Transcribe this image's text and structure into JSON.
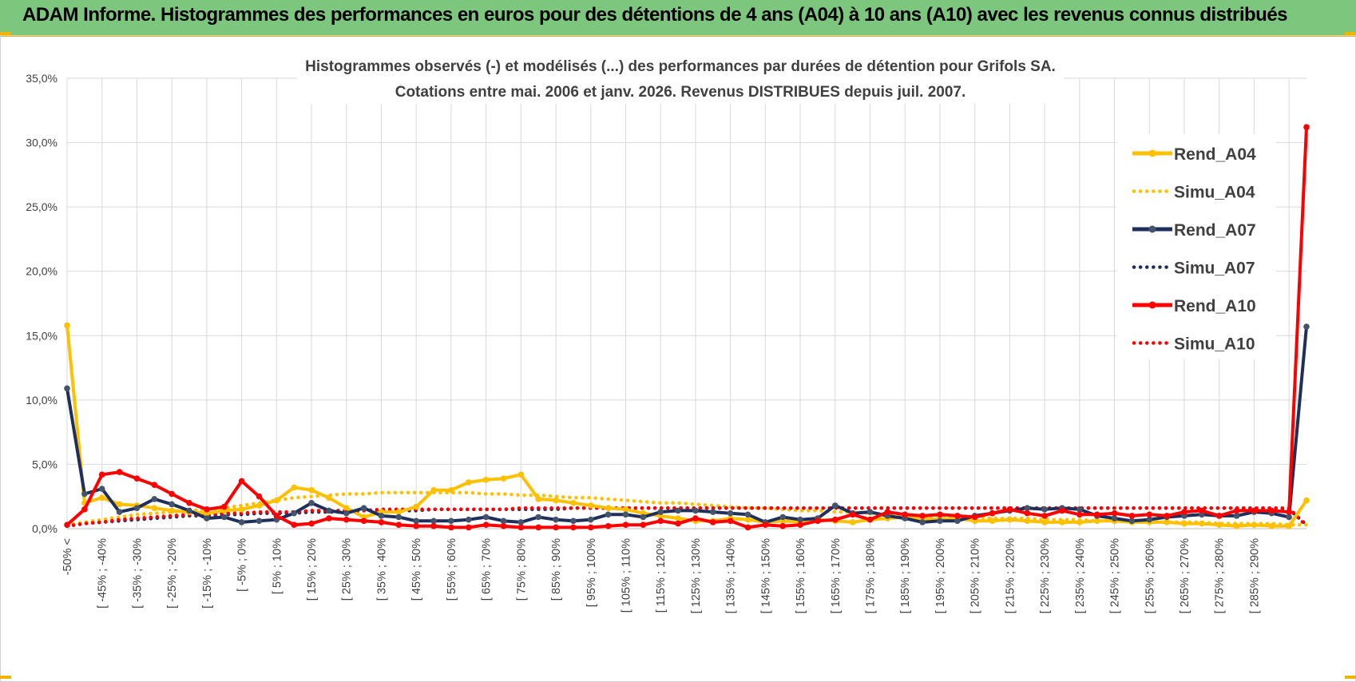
{
  "banner": {
    "title": "ADAM Informe. Histogrammes des performances en euros pour des détentions de 4 ans (A04) à 10 ans (A10) avec les revenus connus distribués"
  },
  "colors": {
    "banner_bg": "#7cc67e",
    "A04": "#ffc000",
    "A07": "#1f2f5c",
    "A10": "#ff0000",
    "grid": "#d9d9d9"
  },
  "chart_data": {
    "type": "line",
    "title": "Histogrammes observés (-) et modélisés (...) des performances par durées de détention pour Grifols SA.",
    "subtitle": "Cotations entre mai. 2006 et janv. 2026. Revenus DISTRIBUES depuis juil. 2007.",
    "xlabel": "",
    "ylabel": "",
    "ylim": [
      0,
      35
    ],
    "yticks": [
      "0,0%",
      "5,0%",
      "10,0%",
      "15,0%",
      "20,0%",
      "25,0%",
      "30,0%",
      "35,0%"
    ],
    "grid": true,
    "legend_position": "right",
    "x_tick_labels": [
      "-50% <",
      "[ -45% ; -40%",
      "[ -35% ; -30%",
      "[ -25% ; -20%",
      "[ -15% ; -10%",
      "[ -5% ; 0%",
      "[ 5% ; 10%",
      "[ 15% ; 20%",
      "[ 25% ; 30%",
      "[ 35% ; 40%",
      "[ 45% ; 50%",
      "[ 55% ; 60%",
      "[ 65% ; 70%",
      "[ 75% ; 80%",
      "[ 85% ; 90%",
      "[ 95% ; 100%",
      "[ 105% ; 110%",
      "[ 115% ; 120%",
      "[ 125% ; 130%",
      "[ 135% ; 140%",
      "[ 145% ; 150%",
      "[ 155% ; 160%",
      "[ 165% ; 170%",
      "[ 175% ; 180%",
      "[ 185% ; 190%",
      "[ 195% ; 200%",
      "[ 205% ; 210%",
      "[ 215% ; 220%",
      "[ 225% ; 230%",
      "[ 235% ; 240%",
      "[ 245% ; 250%",
      "[ 255% ; 260%",
      "[ 265% ; 270%",
      "[ 275% ; 280%",
      "[ 285% ; 290%"
    ],
    "n_points": 72,
    "series": [
      {
        "name": "Rend_A04",
        "style": "solid",
        "color": "#ffc000",
        "values": [
          15.8,
          2.0,
          2.4,
          1.9,
          1.8,
          1.6,
          1.4,
          1.3,
          1.2,
          1.4,
          1.5,
          1.8,
          2.2,
          3.2,
          3.0,
          2.4,
          1.6,
          0.9,
          1.3,
          1.3,
          1.7,
          3.0,
          3.0,
          3.6,
          3.8,
          3.9,
          4.2,
          2.3,
          2.2,
          2.0,
          1.8,
          1.6,
          1.5,
          1.2,
          1.0,
          0.8,
          0.6,
          0.6,
          0.8,
          0.7,
          0.5,
          0.6,
          0.5,
          0.7,
          0.6,
          0.5,
          0.7,
          0.8,
          0.9,
          0.8,
          0.7,
          0.8,
          0.6,
          0.6,
          0.7,
          0.6,
          0.5,
          0.5,
          0.5,
          0.6,
          0.6,
          0.5,
          0.5,
          0.5,
          0.4,
          0.4,
          0.3,
          0.2,
          0.3,
          0.2,
          0.2,
          2.2
        ]
      },
      {
        "name": "Simu_A04",
        "style": "dotted",
        "color": "#ffc000",
        "values": [
          0.3,
          0.5,
          0.7,
          0.9,
          1.1,
          1.2,
          1.3,
          1.4,
          1.5,
          1.6,
          1.8,
          2.0,
          2.2,
          2.4,
          2.5,
          2.6,
          2.7,
          2.7,
          2.8,
          2.8,
          2.8,
          2.8,
          2.8,
          2.8,
          2.7,
          2.7,
          2.6,
          2.6,
          2.5,
          2.4,
          2.4,
          2.3,
          2.2,
          2.1,
          2.0,
          2.0,
          1.9,
          1.8,
          1.7,
          1.6,
          1.6,
          1.5,
          1.4,
          1.4,
          1.3,
          1.3,
          1.2,
          1.1,
          1.1,
          1.0,
          1.0,
          0.9,
          0.9,
          0.8,
          0.8,
          0.8,
          0.7,
          0.7,
          0.7,
          0.6,
          0.6,
          0.6,
          0.5,
          0.5,
          0.5,
          0.5,
          0.4,
          0.4,
          0.4,
          0.4,
          0.3,
          0.3
        ]
      },
      {
        "name": "Rend_A07",
        "style": "solid",
        "color": "#1f2f5c",
        "values": [
          10.9,
          2.7,
          3.1,
          1.3,
          1.6,
          2.3,
          1.9,
          1.4,
          0.8,
          0.9,
          0.5,
          0.6,
          0.7,
          1.2,
          2.0,
          1.4,
          1.2,
          1.6,
          1.0,
          0.9,
          0.6,
          0.6,
          0.6,
          0.7,
          0.9,
          0.6,
          0.5,
          0.9,
          0.7,
          0.6,
          0.7,
          1.1,
          1.1,
          0.9,
          1.3,
          1.4,
          1.4,
          1.3,
          1.2,
          1.1,
          0.5,
          0.9,
          0.7,
          0.8,
          1.8,
          1.2,
          1.3,
          1.0,
          0.8,
          0.5,
          0.6,
          0.6,
          1.0,
          1.2,
          1.4,
          1.6,
          1.5,
          1.6,
          1.5,
          1.0,
          0.8,
          0.6,
          0.7,
          0.9,
          1.0,
          1.1,
          1.0,
          1.0,
          1.3,
          1.2,
          0.9,
          15.7
        ]
      },
      {
        "name": "Simu_A07",
        "style": "dotted",
        "color": "#1f2f5c",
        "values": [
          0.2,
          0.4,
          0.5,
          0.6,
          0.7,
          0.8,
          0.9,
          1.0,
          1.0,
          1.1,
          1.1,
          1.2,
          1.2,
          1.2,
          1.3,
          1.3,
          1.3,
          1.4,
          1.4,
          1.4,
          1.4,
          1.5,
          1.5,
          1.5,
          1.5,
          1.5,
          1.5,
          1.5,
          1.5,
          1.6,
          1.6,
          1.6,
          1.6,
          1.6,
          1.6,
          1.6,
          1.6,
          1.6,
          1.6,
          1.6,
          1.6,
          1.6,
          1.6,
          1.6,
          1.6,
          1.6,
          1.6,
          1.6,
          1.6,
          1.6,
          1.6,
          1.6,
          1.6,
          1.6,
          1.6,
          1.6,
          1.6,
          1.6,
          1.6,
          1.6,
          1.6,
          1.6,
          1.6,
          1.6,
          1.6,
          1.6,
          1.6,
          1.6,
          1.6,
          1.6,
          1.5,
          0.3
        ]
      },
      {
        "name": "Rend_A10",
        "style": "solid",
        "color": "#ff0000",
        "values": [
          0.3,
          1.5,
          4.2,
          4.4,
          3.9,
          3.4,
          2.7,
          2.0,
          1.5,
          1.7,
          3.7,
          2.5,
          1.0,
          0.3,
          0.4,
          0.8,
          0.7,
          0.6,
          0.5,
          0.3,
          0.2,
          0.2,
          0.1,
          0.1,
          0.3,
          0.2,
          0.1,
          0.1,
          0.1,
          0.1,
          0.1,
          0.2,
          0.3,
          0.3,
          0.6,
          0.4,
          0.8,
          0.5,
          0.6,
          0.1,
          0.3,
          0.2,
          0.3,
          0.6,
          0.7,
          1.1,
          0.7,
          1.3,
          1.1,
          1.0,
          1.1,
          1.0,
          0.9,
          1.2,
          1.5,
          1.2,
          1.0,
          1.4,
          1.1,
          1.1,
          1.2,
          1.0,
          1.1,
          1.0,
          1.3,
          1.4,
          1.0,
          1.4,
          1.4,
          1.4,
          1.3,
          31.2
        ]
      },
      {
        "name": "Simu_A10",
        "style": "dotted",
        "color": "#ff0000",
        "values": [
          0.2,
          0.4,
          0.5,
          0.7,
          0.8,
          0.9,
          1.0,
          1.1,
          1.1,
          1.2,
          1.2,
          1.3,
          1.3,
          1.3,
          1.4,
          1.4,
          1.4,
          1.4,
          1.5,
          1.5,
          1.5,
          1.5,
          1.5,
          1.5,
          1.5,
          1.5,
          1.6,
          1.6,
          1.6,
          1.6,
          1.6,
          1.6,
          1.6,
          1.6,
          1.6,
          1.6,
          1.6,
          1.6,
          1.6,
          1.6,
          1.6,
          1.6,
          1.6,
          1.6,
          1.6,
          1.6,
          1.6,
          1.6,
          1.6,
          1.6,
          1.6,
          1.6,
          1.6,
          1.6,
          1.6,
          1.6,
          1.6,
          1.6,
          1.6,
          1.6,
          1.6,
          1.6,
          1.6,
          1.6,
          1.6,
          1.6,
          1.6,
          1.6,
          1.6,
          1.6,
          1.6,
          0.2
        ]
      }
    ]
  }
}
